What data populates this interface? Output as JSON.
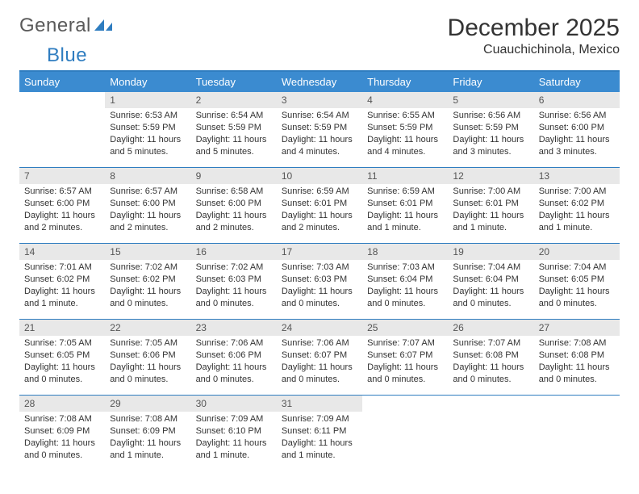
{
  "brand": {
    "part1": "General",
    "part2": "Blue"
  },
  "title": "December 2025",
  "location": "Cuauchichinola, Mexico",
  "colors": {
    "header_bg": "#3b8bd0",
    "header_text": "#ffffff",
    "rule": "#2f7dc0",
    "daynum_bg": "#e8e8e8",
    "text": "#333333"
  },
  "weekdays": [
    "Sunday",
    "Monday",
    "Tuesday",
    "Wednesday",
    "Thursday",
    "Friday",
    "Saturday"
  ],
  "weeks": [
    [
      null,
      {
        "n": "1",
        "sr": "Sunrise: 6:53 AM",
        "ss": "Sunset: 5:59 PM",
        "d1": "Daylight: 11 hours",
        "d2": "and 5 minutes."
      },
      {
        "n": "2",
        "sr": "Sunrise: 6:54 AM",
        "ss": "Sunset: 5:59 PM",
        "d1": "Daylight: 11 hours",
        "d2": "and 5 minutes."
      },
      {
        "n": "3",
        "sr": "Sunrise: 6:54 AM",
        "ss": "Sunset: 5:59 PM",
        "d1": "Daylight: 11 hours",
        "d2": "and 4 minutes."
      },
      {
        "n": "4",
        "sr": "Sunrise: 6:55 AM",
        "ss": "Sunset: 5:59 PM",
        "d1": "Daylight: 11 hours",
        "d2": "and 4 minutes."
      },
      {
        "n": "5",
        "sr": "Sunrise: 6:56 AM",
        "ss": "Sunset: 5:59 PM",
        "d1": "Daylight: 11 hours",
        "d2": "and 3 minutes."
      },
      {
        "n": "6",
        "sr": "Sunrise: 6:56 AM",
        "ss": "Sunset: 6:00 PM",
        "d1": "Daylight: 11 hours",
        "d2": "and 3 minutes."
      }
    ],
    [
      {
        "n": "7",
        "sr": "Sunrise: 6:57 AM",
        "ss": "Sunset: 6:00 PM",
        "d1": "Daylight: 11 hours",
        "d2": "and 2 minutes."
      },
      {
        "n": "8",
        "sr": "Sunrise: 6:57 AM",
        "ss": "Sunset: 6:00 PM",
        "d1": "Daylight: 11 hours",
        "d2": "and 2 minutes."
      },
      {
        "n": "9",
        "sr": "Sunrise: 6:58 AM",
        "ss": "Sunset: 6:00 PM",
        "d1": "Daylight: 11 hours",
        "d2": "and 2 minutes."
      },
      {
        "n": "10",
        "sr": "Sunrise: 6:59 AM",
        "ss": "Sunset: 6:01 PM",
        "d1": "Daylight: 11 hours",
        "d2": "and 2 minutes."
      },
      {
        "n": "11",
        "sr": "Sunrise: 6:59 AM",
        "ss": "Sunset: 6:01 PM",
        "d1": "Daylight: 11 hours",
        "d2": "and 1 minute."
      },
      {
        "n": "12",
        "sr": "Sunrise: 7:00 AM",
        "ss": "Sunset: 6:01 PM",
        "d1": "Daylight: 11 hours",
        "d2": "and 1 minute."
      },
      {
        "n": "13",
        "sr": "Sunrise: 7:00 AM",
        "ss": "Sunset: 6:02 PM",
        "d1": "Daylight: 11 hours",
        "d2": "and 1 minute."
      }
    ],
    [
      {
        "n": "14",
        "sr": "Sunrise: 7:01 AM",
        "ss": "Sunset: 6:02 PM",
        "d1": "Daylight: 11 hours",
        "d2": "and 1 minute."
      },
      {
        "n": "15",
        "sr": "Sunrise: 7:02 AM",
        "ss": "Sunset: 6:02 PM",
        "d1": "Daylight: 11 hours",
        "d2": "and 0 minutes."
      },
      {
        "n": "16",
        "sr": "Sunrise: 7:02 AM",
        "ss": "Sunset: 6:03 PM",
        "d1": "Daylight: 11 hours",
        "d2": "and 0 minutes."
      },
      {
        "n": "17",
        "sr": "Sunrise: 7:03 AM",
        "ss": "Sunset: 6:03 PM",
        "d1": "Daylight: 11 hours",
        "d2": "and 0 minutes."
      },
      {
        "n": "18",
        "sr": "Sunrise: 7:03 AM",
        "ss": "Sunset: 6:04 PM",
        "d1": "Daylight: 11 hours",
        "d2": "and 0 minutes."
      },
      {
        "n": "19",
        "sr": "Sunrise: 7:04 AM",
        "ss": "Sunset: 6:04 PM",
        "d1": "Daylight: 11 hours",
        "d2": "and 0 minutes."
      },
      {
        "n": "20",
        "sr": "Sunrise: 7:04 AM",
        "ss": "Sunset: 6:05 PM",
        "d1": "Daylight: 11 hours",
        "d2": "and 0 minutes."
      }
    ],
    [
      {
        "n": "21",
        "sr": "Sunrise: 7:05 AM",
        "ss": "Sunset: 6:05 PM",
        "d1": "Daylight: 11 hours",
        "d2": "and 0 minutes."
      },
      {
        "n": "22",
        "sr": "Sunrise: 7:05 AM",
        "ss": "Sunset: 6:06 PM",
        "d1": "Daylight: 11 hours",
        "d2": "and 0 minutes."
      },
      {
        "n": "23",
        "sr": "Sunrise: 7:06 AM",
        "ss": "Sunset: 6:06 PM",
        "d1": "Daylight: 11 hours",
        "d2": "and 0 minutes."
      },
      {
        "n": "24",
        "sr": "Sunrise: 7:06 AM",
        "ss": "Sunset: 6:07 PM",
        "d1": "Daylight: 11 hours",
        "d2": "and 0 minutes."
      },
      {
        "n": "25",
        "sr": "Sunrise: 7:07 AM",
        "ss": "Sunset: 6:07 PM",
        "d1": "Daylight: 11 hours",
        "d2": "and 0 minutes."
      },
      {
        "n": "26",
        "sr": "Sunrise: 7:07 AM",
        "ss": "Sunset: 6:08 PM",
        "d1": "Daylight: 11 hours",
        "d2": "and 0 minutes."
      },
      {
        "n": "27",
        "sr": "Sunrise: 7:08 AM",
        "ss": "Sunset: 6:08 PM",
        "d1": "Daylight: 11 hours",
        "d2": "and 0 minutes."
      }
    ],
    [
      {
        "n": "28",
        "sr": "Sunrise: 7:08 AM",
        "ss": "Sunset: 6:09 PM",
        "d1": "Daylight: 11 hours",
        "d2": "and 0 minutes."
      },
      {
        "n": "29",
        "sr": "Sunrise: 7:08 AM",
        "ss": "Sunset: 6:09 PM",
        "d1": "Daylight: 11 hours",
        "d2": "and 1 minute."
      },
      {
        "n": "30",
        "sr": "Sunrise: 7:09 AM",
        "ss": "Sunset: 6:10 PM",
        "d1": "Daylight: 11 hours",
        "d2": "and 1 minute."
      },
      {
        "n": "31",
        "sr": "Sunrise: 7:09 AM",
        "ss": "Sunset: 6:11 PM",
        "d1": "Daylight: 11 hours",
        "d2": "and 1 minute."
      },
      null,
      null,
      null
    ]
  ]
}
